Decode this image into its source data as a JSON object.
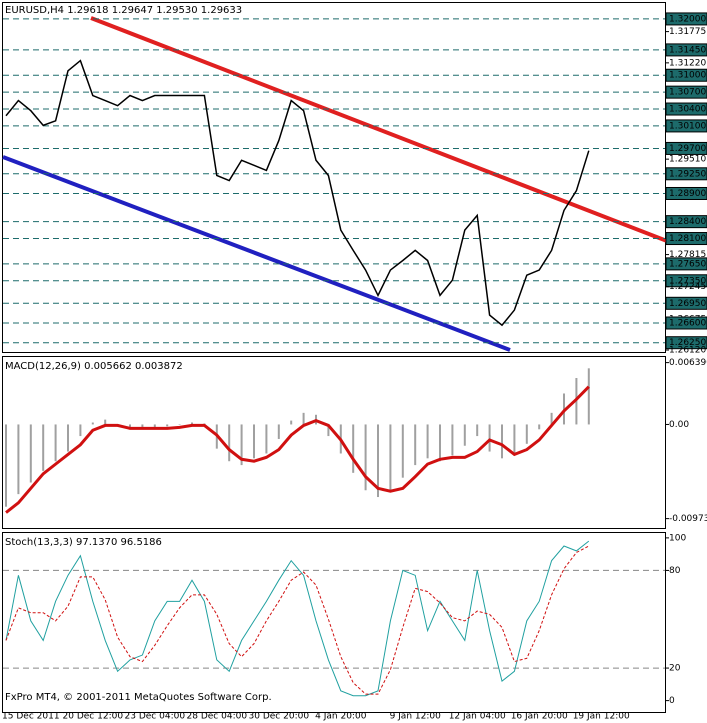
{
  "chart_data": [
    {
      "type": "line",
      "title": "EURUSD,H4  1.29618 1.29647 1.29530 1.29633",
      "color": "#000000",
      "values": [
        1.3028,
        1.3055,
        1.3037,
        1.3011,
        1.3019,
        1.3108,
        1.3126,
        1.3064,
        1.3055,
        1.3046,
        1.3064,
        1.3055,
        1.3064,
        1.3064,
        1.3064,
        1.3064,
        1.3064,
        1.2922,
        1.2913,
        1.2949,
        1.294,
        1.2931,
        1.2984,
        1.3055,
        1.3037,
        1.2949,
        1.2922,
        1.2825,
        1.2789,
        1.2754,
        1.2709,
        1.2754,
        1.2771,
        1.2789,
        1.2771,
        1.2709,
        1.2736,
        1.2825,
        1.2851,
        1.2674,
        1.2656,
        1.2683,
        1.2745,
        1.2754,
        1.2789,
        1.286,
        1.2895,
        1.2966,
        null
      ],
      "ylim": [
        1.26085,
        1.32283
      ],
      "yticks": [
        {
          "value": 1.32,
          "label": "1.32000"
        },
        {
          "value": 1.31775,
          "label": "1.31775"
        },
        {
          "value": 1.3145,
          "label": "1.31450"
        },
        {
          "value": 1.3122,
          "label": "1.31220"
        },
        {
          "value": 1.31,
          "label": "1.31000"
        },
        {
          "value": 1.307,
          "label": "1.30700"
        },
        {
          "value": 1.304,
          "label": "1.30400"
        },
        {
          "value": 1.301,
          "label": "1.30100"
        },
        {
          "value": 1.297,
          "label": "1.29700"
        },
        {
          "value": 1.2951,
          "label": "1.29510"
        },
        {
          "value": 1.2925,
          "label": "1.29250"
        },
        {
          "value": 1.289,
          "label": "1.28900"
        },
        {
          "value": 1.284,
          "label": "1.28400"
        },
        {
          "value": 1.281,
          "label": "1.28100"
        },
        {
          "value": 1.27815,
          "label": "1.27815"
        },
        {
          "value": 1.2765,
          "label": "1.27650"
        },
        {
          "value": 1.2735,
          "label": "1.27350"
        },
        {
          "value": 1.27245,
          "label": "1.27245"
        },
        {
          "value": 1.2695,
          "label": "1.26950"
        },
        {
          "value": 1.26675,
          "label": "1.26675"
        },
        {
          "value": 1.266,
          "label": "1.26600"
        },
        {
          "value": 1.2625,
          "label": "1.26250"
        },
        {
          "value": 1.2612,
          "label": "1.26120"
        }
      ],
      "levels": [
        1.32,
        1.3145,
        1.31,
        1.307,
        1.304,
        1.301,
        1.297,
        1.2925,
        1.289,
        1.284,
        1.281,
        1.2765,
        1.2735,
        1.2695,
        1.266,
        1.2625
      ],
      "level_color": "#1d6b6b"
    },
    {
      "type": "macd",
      "title": "MACD(12,26,9) 0.005662 0.003872",
      "histogram": {
        "color": "#a0a0a0",
        "values": [
          -0.0085,
          -0.0072,
          -0.006,
          -0.0048,
          -0.0038,
          -0.0028,
          -0.0012,
          0.0002,
          0.0005,
          0.0,
          -0.0004,
          -0.0003,
          -0.0003,
          -0.0002,
          0.0,
          0.0002,
          0.0001,
          -0.0025,
          -0.0038,
          -0.0042,
          -0.0035,
          -0.003,
          -0.0015,
          0.0004,
          0.0012,
          0.001,
          -0.0012,
          -0.003,
          -0.005,
          -0.0068,
          -0.0075,
          -0.0068,
          -0.0055,
          -0.0042,
          -0.0035,
          -0.0038,
          -0.0032,
          -0.0022,
          -0.0012,
          -0.0028,
          -0.0035,
          -0.003,
          -0.002,
          -0.0005,
          0.0012,
          0.0032,
          0.0048,
          0.0058,
          null
        ]
      },
      "signal": {
        "color": "#d01010",
        "values": [
          -0.0091,
          -0.0081,
          -0.0066,
          -0.0051,
          -0.0041,
          -0.0031,
          -0.0021,
          -0.0006,
          -0.0001,
          -0.0001,
          -0.0004,
          -0.0004,
          -0.0004,
          -0.0004,
          -0.0003,
          -0.0001,
          -0.0001,
          -0.0011,
          -0.0026,
          -0.0036,
          -0.0038,
          -0.0034,
          -0.0026,
          -0.0011,
          -0.0001,
          0.0004,
          -0.0001,
          -0.0016,
          -0.0036,
          -0.0054,
          -0.0066,
          -0.0069,
          -0.0066,
          -0.0054,
          -0.0041,
          -0.0036,
          -0.0034,
          -0.0034,
          -0.0028,
          -0.0016,
          -0.0021,
          -0.0031,
          -0.0026,
          -0.0016,
          -0.0001,
          0.0014,
          0.0026,
          0.0039,
          null
        ]
      },
      "ylim": [
        -0.0107,
        0.00697
      ],
      "yticks": [
        {
          "value": 0.00639,
          "label": "0.006390"
        },
        {
          "value": 0,
          "label": "0.00"
        },
        {
          "value": -0.00973,
          "label": "-0.00973"
        }
      ]
    },
    {
      "type": "line",
      "title": "Stoch(13,3,3) 97.1370 96.5186",
      "footer": "FxPro MT4, © 2001-2011 MetaQuotes Software Corp.",
      "categories": [
        null,
        null,
        "15 Dec 2011",
        null,
        null,
        null,
        null,
        "20 Dec 12:00",
        null,
        null,
        null,
        null,
        "23 Dec 04:00",
        null,
        null,
        null,
        null,
        "28 Dec 04:00",
        null,
        null,
        null,
        null,
        "30 Dec 20:00",
        null,
        null,
        null,
        null,
        "4 Jan 20:00",
        null,
        null,
        null,
        null,
        null,
        "9 Jan 12:00",
        null,
        null,
        null,
        null,
        "12 Jan 04:00",
        null,
        null,
        null,
        null,
        "16 Jan 20:00",
        null,
        null,
        null,
        null,
        "19 Jan 12:00"
      ],
      "series": [
        {
          "color": "#20a0a0",
          "dashed": false,
          "values": [
            37,
            77,
            49,
            37,
            61,
            77,
            89,
            61,
            37,
            18,
            25,
            28,
            49,
            61,
            61,
            74,
            61,
            25,
            18,
            37,
            49,
            61,
            74,
            86,
            77,
            49,
            25,
            6,
            3,
            3,
            6,
            49,
            80,
            77,
            43,
            61,
            49,
            37,
            80,
            43,
            12,
            18,
            49,
            61,
            86,
            95,
            92,
            98,
            null
          ]
        },
        {
          "color": "#d01010",
          "dashed": true,
          "values": [
            37,
            57,
            54,
            54,
            49,
            58,
            76,
            76,
            62,
            39,
            27,
            24,
            34,
            46,
            57,
            65,
            65,
            53,
            35,
            27,
            35,
            49,
            61,
            74,
            79,
            71,
            50,
            27,
            11,
            4,
            4,
            19,
            45,
            69,
            67,
            60,
            51,
            49,
            55,
            53,
            45,
            24,
            26,
            43,
            65,
            81,
            91,
            95,
            null
          ]
        }
      ],
      "ylim": [
        -7,
        103
      ],
      "yticks": [
        0,
        20,
        80,
        100
      ],
      "levels": [
        20,
        80
      ]
    }
  ]
}
